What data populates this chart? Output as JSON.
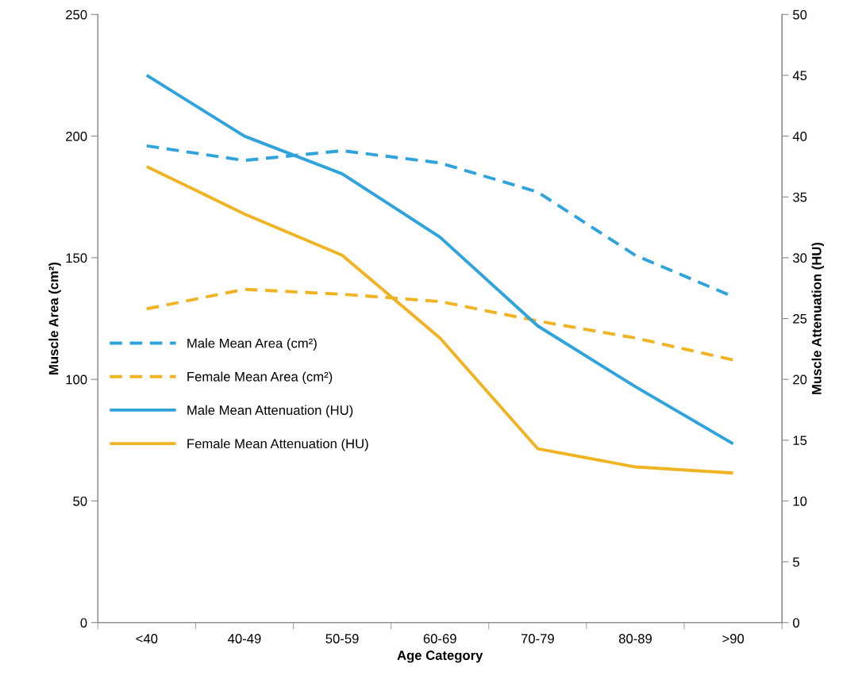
{
  "chart_data": {
    "type": "line",
    "xlabel": "Age Category",
    "ylabel": "Muscle Area (cm²)",
    "y2label": "Muscle Attenuation (HU)",
    "categories": [
      "<40",
      "40-49",
      "50-59",
      "60-69",
      "70-79",
      "80-89",
      ">90"
    ],
    "series": [
      {
        "name": "Male Mean Area (cm²)",
        "color": "#2ea3dc",
        "line_style": "dashed",
        "values": [
          196,
          190,
          194,
          189,
          177,
          151,
          134
        ]
      },
      {
        "name": "Female Mean Area (cm²)",
        "color": "#f0b323",
        "line_style": "dashed",
        "values": [
          129,
          137,
          135,
          132,
          124,
          117,
          108
        ]
      },
      {
        "name": "Male Mean Attenuation (HU)",
        "color": "#2ea3dc",
        "line_style": "solid",
        "axis": "y2",
        "values": [
          45,
          40,
          36.9,
          31.7,
          24.4,
          19.4,
          14.7
        ]
      },
      {
        "name": "Female Mean Attenuation (HU)",
        "color": "#f0b323",
        "line_style": "solid",
        "axis": "y2",
        "values": [
          37.5,
          33.6,
          30.2,
          23.4,
          14.3,
          12.8,
          12.3
        ]
      }
    ],
    "ylim": [
      0,
      250
    ],
    "yticks": [
      0,
      50,
      100,
      150,
      200,
      250
    ],
    "y2lim": [
      0,
      50
    ],
    "y2ticks": [
      0,
      5,
      10,
      15,
      20,
      25,
      30,
      35,
      40,
      45,
      50
    ],
    "grid": false,
    "legend": "center left",
    "marker": "none"
  }
}
